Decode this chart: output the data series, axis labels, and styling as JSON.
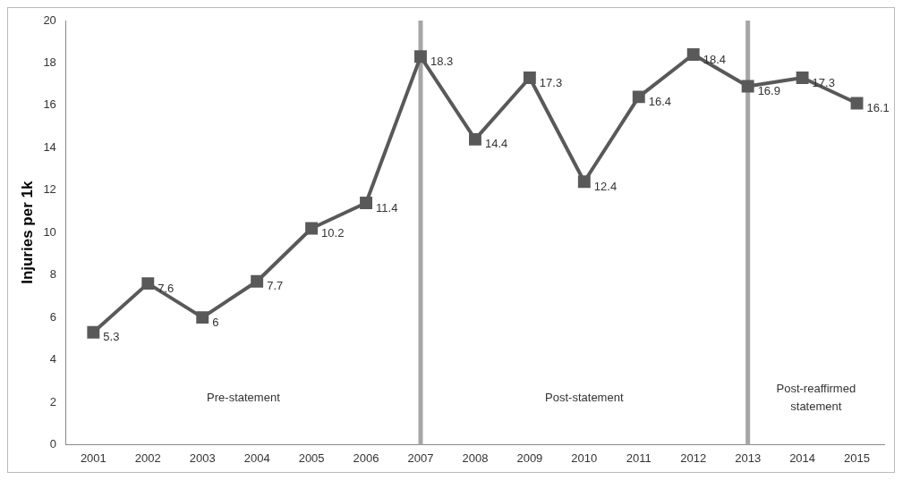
{
  "chart_data": {
    "type": "line",
    "ylabel": "Injuries per 1k",
    "categories": [
      "2001",
      "2002",
      "2003",
      "2004",
      "2005",
      "2006",
      "2007",
      "2008",
      "2009",
      "2010",
      "2011",
      "2012",
      "2013",
      "2014",
      "2015"
    ],
    "series": [
      {
        "color": "#595959",
        "values": [
          5.3,
          7.6,
          6,
          7.7,
          10.2,
          11.4,
          18.3,
          14.4,
          17.3,
          12.4,
          16.4,
          18.4,
          16.9,
          17.3,
          16.1
        ]
      }
    ],
    "ylim": [
      0,
      20
    ],
    "yticks": [
      0,
      2,
      4,
      6,
      8,
      10,
      12,
      14,
      16,
      18,
      20
    ],
    "grid": false,
    "legend": false,
    "marker": "square",
    "line_style": "solid",
    "data_labels": true,
    "ref_lines": [
      {
        "axis": "x",
        "value": "2007",
        "color": "#a6a6a6"
      },
      {
        "axis": "x",
        "value": "2013",
        "color": "#a6a6a6"
      }
    ],
    "annotations": [
      "Pre-statement",
      "Post-statement",
      "Post-reaffirmed statement"
    ]
  }
}
